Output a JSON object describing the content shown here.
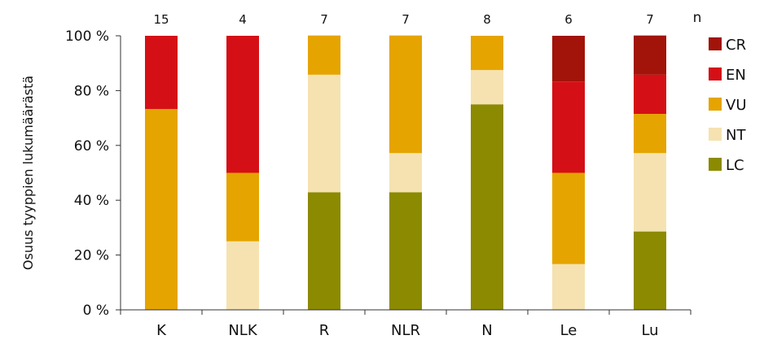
{
  "chart_data": {
    "type": "bar",
    "stacked": true,
    "percent": true,
    "title": "",
    "xlabel": "",
    "ylabel": "Osuus tyyppien lukumäärästä",
    "ylim": [
      0,
      100
    ],
    "yticks": [
      0,
      20,
      40,
      60,
      80,
      100
    ],
    "ytick_labels": [
      "0 %",
      "20 %",
      "40 %",
      "60 %",
      "80 %",
      "100 %"
    ],
    "categories": [
      "K",
      "NLK",
      "R",
      "NLR",
      "N",
      "Le",
      "Lu"
    ],
    "n_label": "n",
    "n_values": [
      "15",
      "4",
      "7",
      "7",
      "8",
      "6",
      "7"
    ],
    "grid": false,
    "legend_position": "right",
    "series": [
      {
        "name": "LC",
        "color": "#8c8a00",
        "values": [
          0,
          0,
          42.9,
          42.9,
          75.0,
          0,
          28.6
        ]
      },
      {
        "name": "NT",
        "color": "#f5e2b0",
        "values": [
          0,
          25.0,
          42.9,
          14.3,
          12.5,
          16.7,
          28.6
        ]
      },
      {
        "name": "VU",
        "color": "#e5a400",
        "values": [
          73.3,
          25.0,
          14.3,
          42.9,
          12.5,
          33.3,
          14.3
        ]
      },
      {
        "name": "EN",
        "color": "#d50f16",
        "values": [
          26.7,
          50.0,
          0,
          0,
          0,
          33.3,
          14.3
        ]
      },
      {
        "name": "CR",
        "color": "#a21309",
        "values": [
          0,
          0,
          0,
          0,
          0,
          16.7,
          14.3
        ]
      }
    ],
    "legend_order": [
      "CR",
      "EN",
      "VU",
      "NT",
      "LC"
    ]
  }
}
